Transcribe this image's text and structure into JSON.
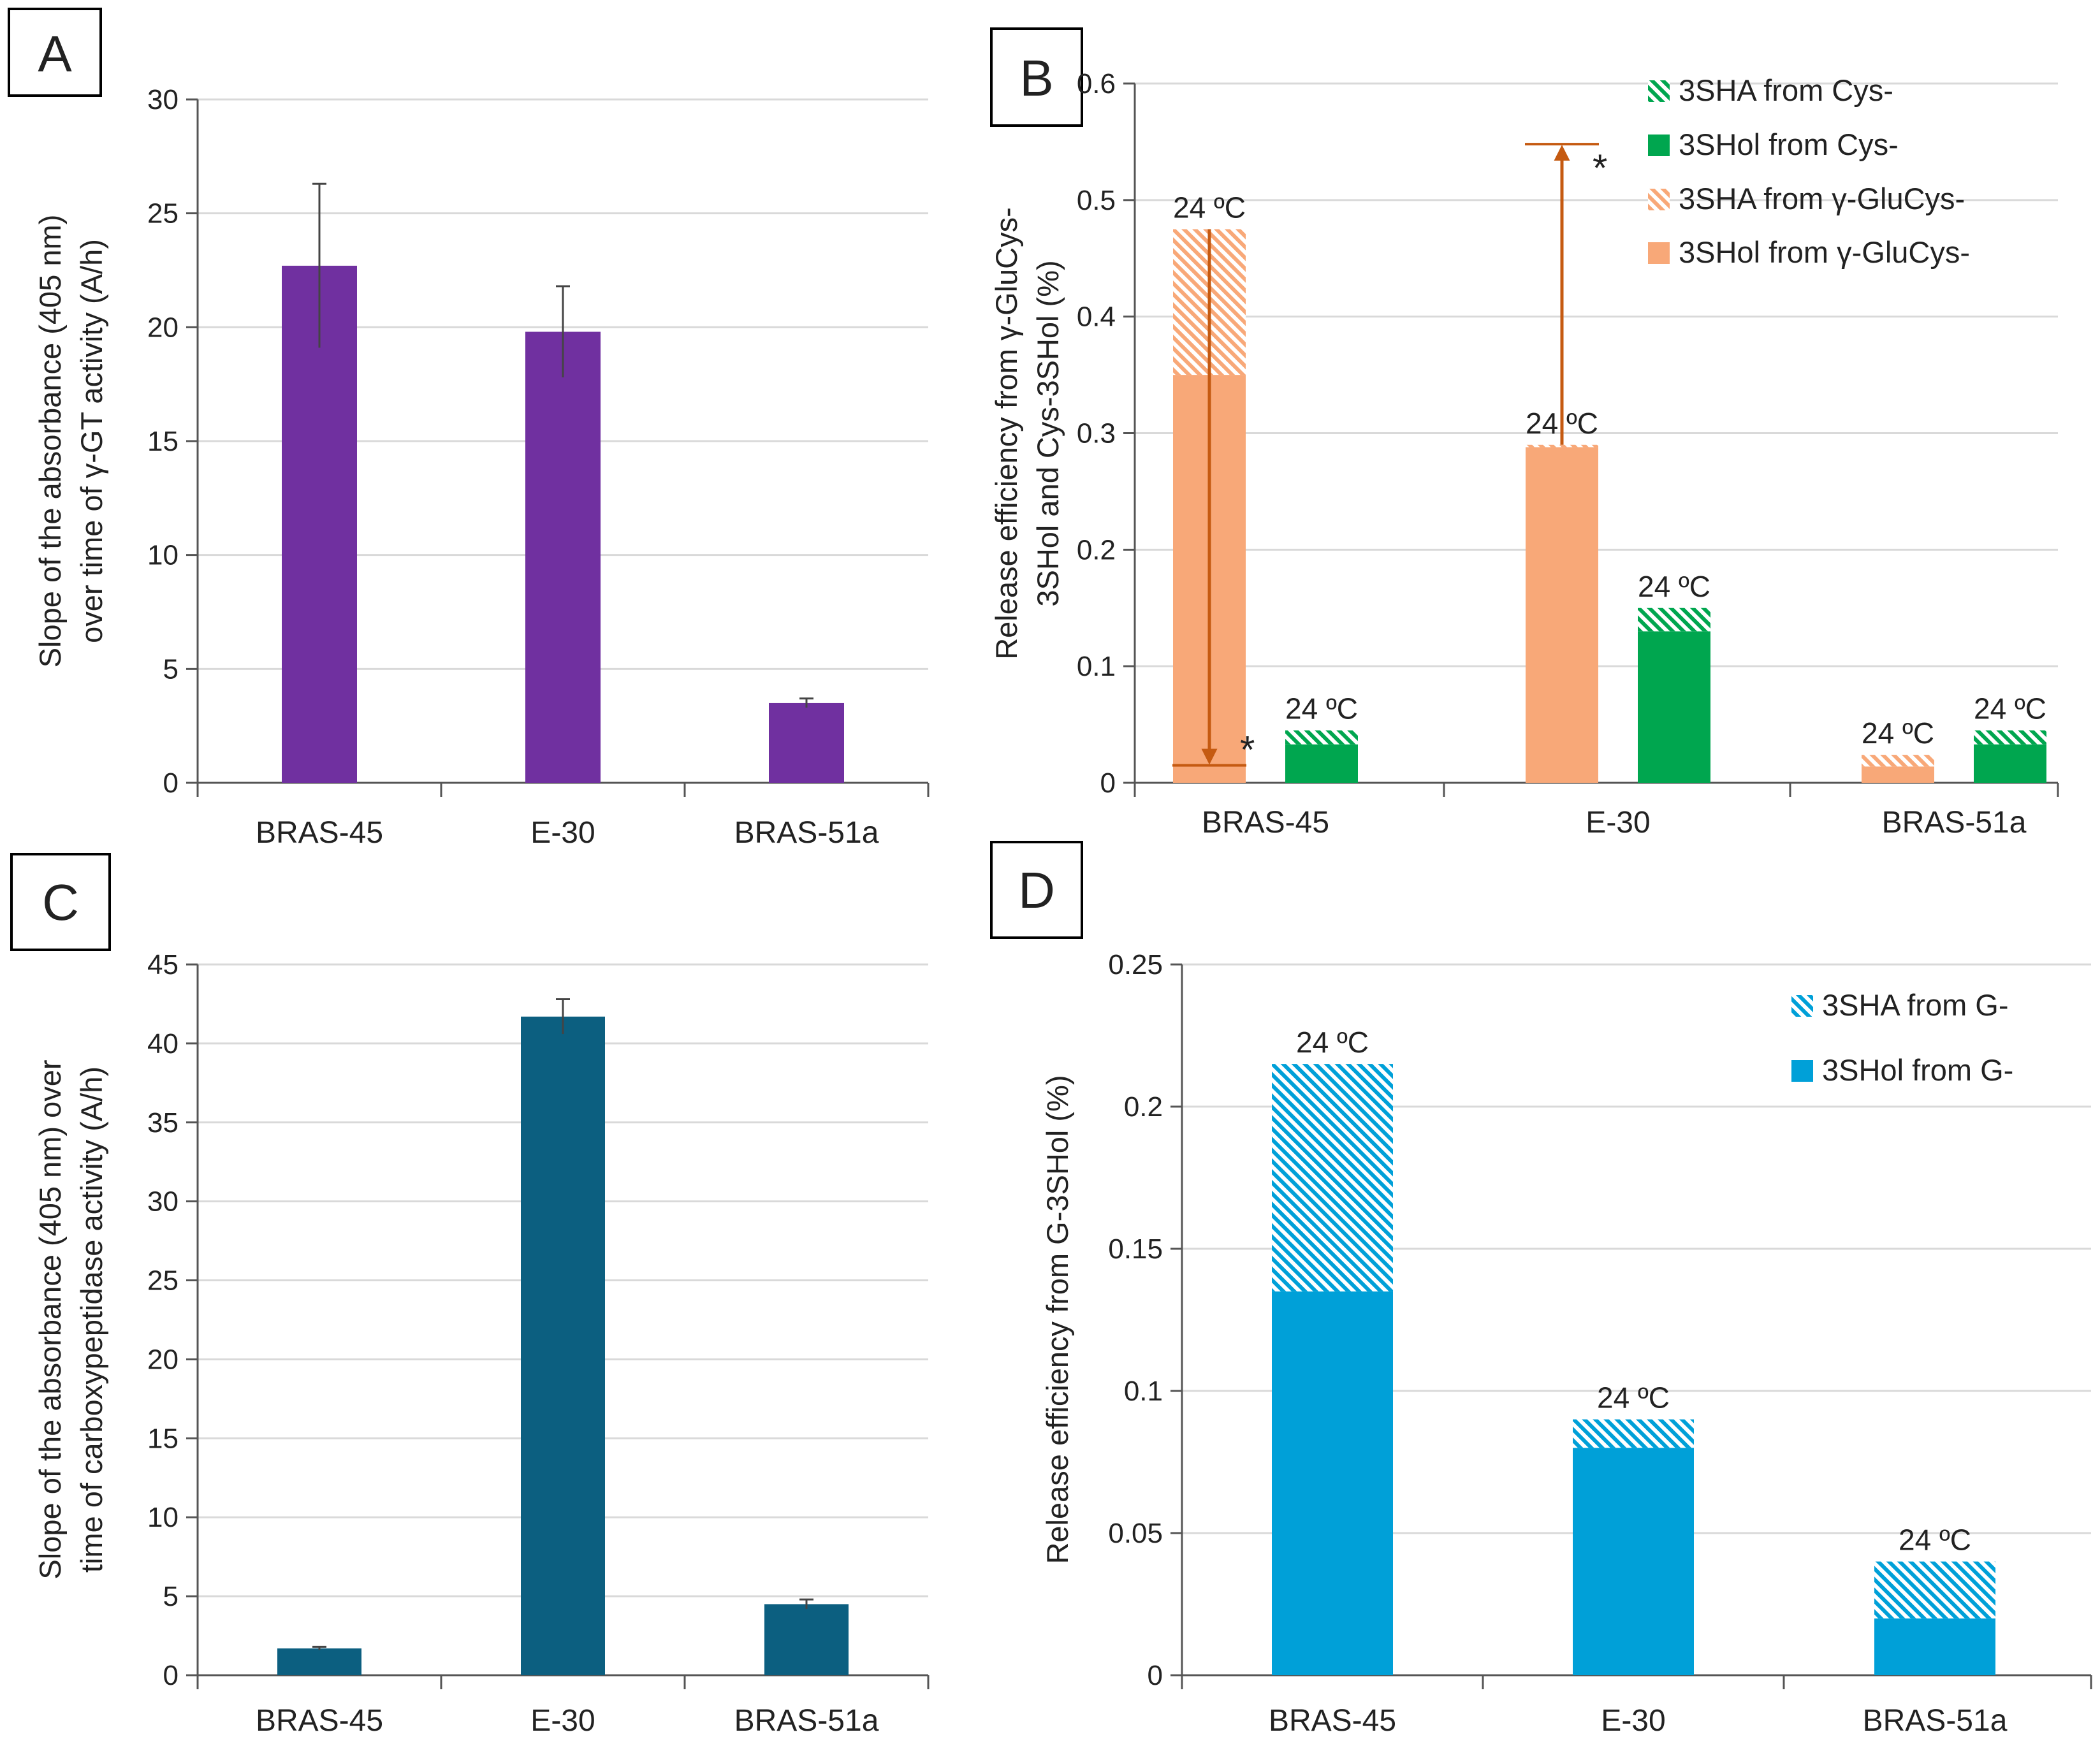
{
  "chart_data": [
    {
      "panel": "A",
      "type": "bar",
      "ylabel_lines": [
        "Slope of the absorbance (405 nm)",
        "over time of γ-GT activity (A/h)"
      ],
      "categories": [
        "BRAS-45",
        "E-30",
        "BRAS-51a"
      ],
      "values": [
        22.7,
        19.8,
        3.5
      ],
      "errors": [
        3.6,
        2.0,
        0.2
      ],
      "ylim": [
        0,
        30
      ],
      "yticks": [
        0,
        5,
        10,
        15,
        20,
        25,
        30
      ],
      "color": "#7030a0",
      "grid": true
    },
    {
      "panel": "B",
      "type": "bar",
      "stacked": true,
      "ylabel_lines": [
        "Release efficiency from γ-GluCys-",
        "3SHol and Cys-3SHol (%)"
      ],
      "categories": [
        "BRAS-45",
        "E-30",
        "BRAS-51a"
      ],
      "ylim": [
        0,
        0.6
      ],
      "yticks": [
        "0",
        "0.1",
        "0.2",
        "0.3",
        "0.4",
        "0.5",
        "0.6"
      ],
      "series": [
        {
          "name": "3SHA from Cys-",
          "hatched": true,
          "color": "#00a64f"
        },
        {
          "name": "3SHol from Cys-",
          "hatched": false,
          "color": "#00a64f"
        },
        {
          "name": "3SHA from γ-GluCys-",
          "hatched": true,
          "color": "#f8a878"
        },
        {
          "name": "3SHol from γ-GluCys-",
          "hatched": false,
          "color": "#f8a878"
        }
      ],
      "stacks": [
        {
          "group": "γ-GluCys-",
          "category": "BRAS-45",
          "solid": 0.35,
          "hatched": 0.125,
          "color": "#f8a878",
          "label": "24 ºC"
        },
        {
          "group": "Cys-",
          "category": "BRAS-45",
          "solid": 0.033,
          "hatched": 0.012,
          "color": "#00a64f",
          "label": "24 ºC"
        },
        {
          "group": "γ-GluCys-",
          "category": "E-30",
          "solid": 0.288,
          "hatched": 0.002,
          "color": "#f8a878",
          "label": "24 ºC"
        },
        {
          "group": "Cys-",
          "category": "E-30",
          "solid": 0.13,
          "hatched": 0.02,
          "color": "#00a64f",
          "label": "24 ºC"
        },
        {
          "group": "γ-GluCys-",
          "category": "BRAS-51a",
          "solid": 0.014,
          "hatched": 0.01,
          "color": "#f8a878",
          "label": "24 ºC"
        },
        {
          "group": "Cys-",
          "category": "BRAS-51a",
          "solid": 0.033,
          "hatched": 0.012,
          "color": "#00a64f",
          "label": "24 ºC"
        }
      ],
      "arrows": [
        {
          "category": "BRAS-45",
          "from": 0.475,
          "to": 0.015,
          "marker": "*"
        },
        {
          "category": "E-30",
          "from": 0.29,
          "to": 0.548,
          "marker": "*"
        }
      ],
      "arrow_color": "#c55a11",
      "legend_position": "top-right",
      "grid": true
    },
    {
      "panel": "C",
      "type": "bar",
      "ylabel_lines": [
        "Slope of the absorbance (405 nm) over",
        "time of carboxypeptidase activity (A/h)"
      ],
      "categories": [
        "BRAS-45",
        "E-30",
        "BRAS-51a"
      ],
      "values": [
        1.7,
        41.7,
        4.5
      ],
      "errors": [
        0.1,
        1.1,
        0.3
      ],
      "ylim": [
        0,
        45
      ],
      "yticks": [
        0,
        5,
        10,
        15,
        20,
        25,
        30,
        35,
        40,
        45
      ],
      "color": "#0c5f80",
      "grid": true
    },
    {
      "panel": "D",
      "type": "bar",
      "stacked": true,
      "ylabel_lines": [
        "Release efficiency from G-3SHol (%)"
      ],
      "categories": [
        "BRAS-45",
        "E-30",
        "BRAS-51a"
      ],
      "ylim": [
        0,
        0.25
      ],
      "yticks": [
        "0",
        "0.05",
        "0.1",
        "0.15",
        "0.2",
        "0.25"
      ],
      "series": [
        {
          "name": "3SHA from G-",
          "hatched": true,
          "color": "#00a0d8",
          "values": [
            0.08,
            0.01,
            0.02
          ]
        },
        {
          "name": "3SHol from G-",
          "hatched": false,
          "color": "#00a0d8",
          "values": [
            0.135,
            0.08,
            0.02
          ]
        }
      ],
      "bar_labels": [
        "24 ºC",
        "24 ºC",
        "24 ºC"
      ],
      "legend_position": "top-right",
      "grid": true
    }
  ]
}
